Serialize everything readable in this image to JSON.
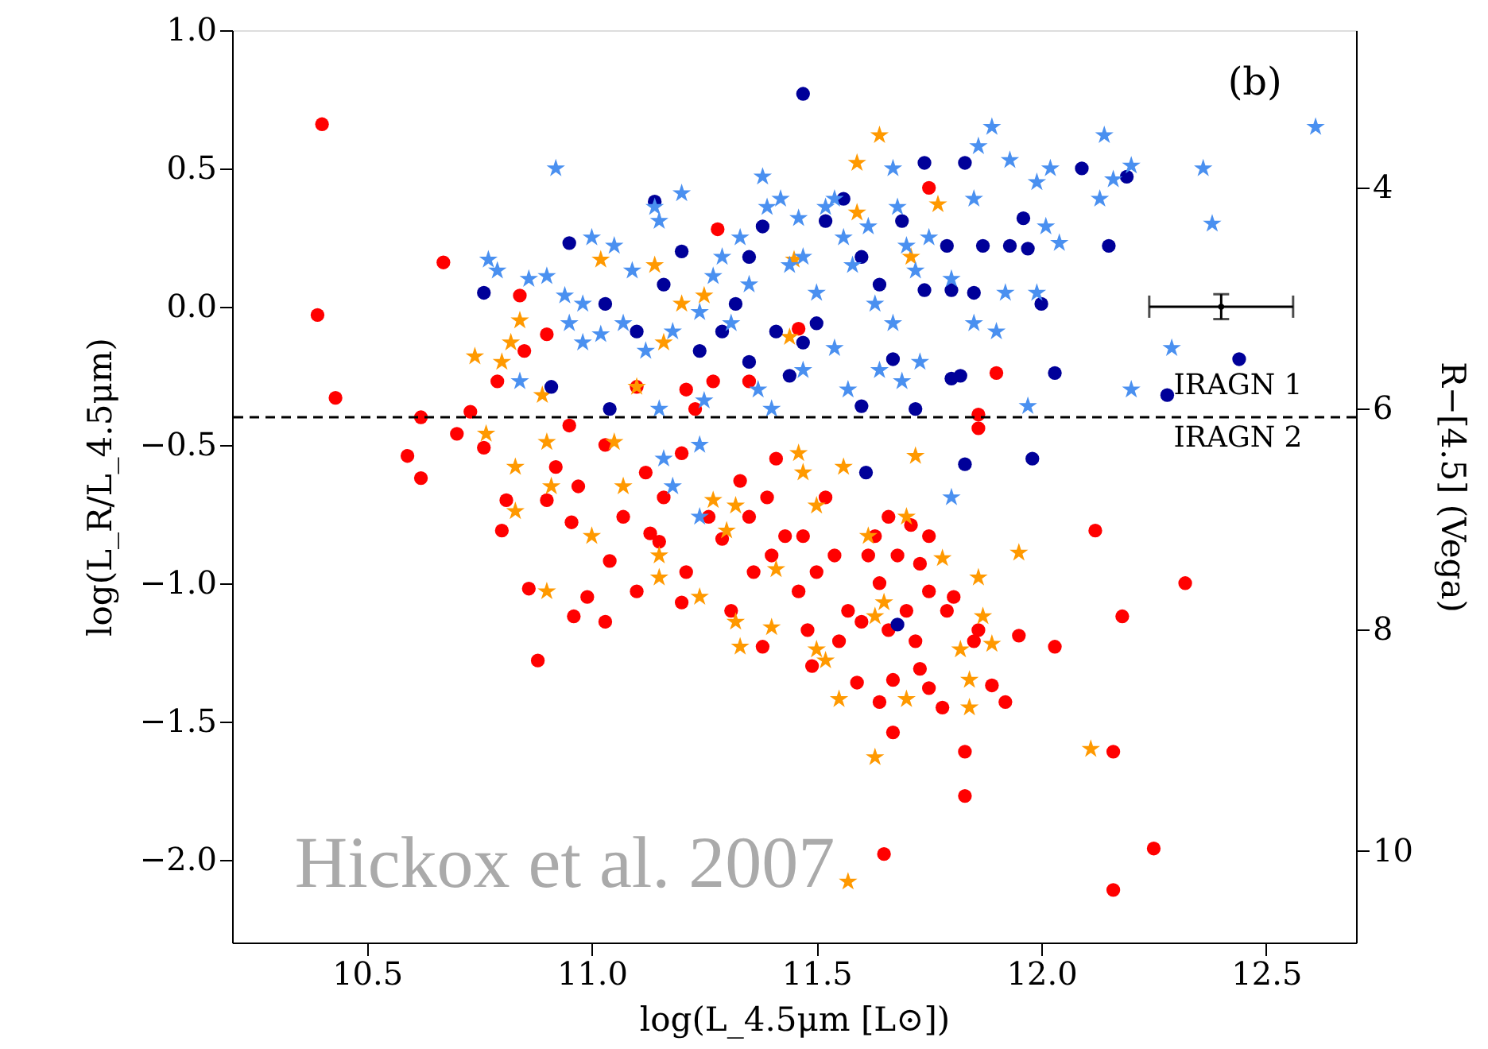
{
  "chart_data": {
    "type": "scatter",
    "xlabel": "log(L_4.5μm [L⊙])",
    "ylabel": "log(L_R/L_4.5μm)",
    "y2label": "R−[4.5] (Vega)",
    "xlim": [
      10.2,
      12.7
    ],
    "xticks": [
      10.5,
      {
        "value": 11,
        "label": "11.0"
      },
      11.5,
      {
        "value": 12,
        "label": "12.0"
      },
      12.5
    ],
    "ylim": [
      -2.3,
      1.0
    ],
    "yticks": [
      {
        "value": 1,
        "label": "1.0"
      },
      0.5,
      {
        "value": 0,
        "label": "0.0"
      },
      {
        "value": -0.5,
        "label": "−0.5"
      },
      {
        "value": -1,
        "label": "−1.0"
      },
      {
        "value": -1.5,
        "label": "−1.5"
      },
      {
        "value": -2,
        "label": "−2.0"
      }
    ],
    "y2lim": [
      10.83,
      2.58
    ],
    "y2ticks": [
      4,
      6,
      8,
      10
    ],
    "grid": false,
    "ref_lines": [
      {
        "axis": "y",
        "value": -0.4,
        "line_style": "dashed",
        "color": "#000000"
      }
    ],
    "annotations": [
      "(b)",
      "IRAGN 1",
      "IRAGN 2",
      "Hickox et al. 2007"
    ],
    "series": [
      {
        "marker": "circle",
        "color": "#ff0000",
        "x": [
          10.4,
          10.39,
          10.43,
          10.67,
          10.62,
          10.59,
          10.62,
          10.7,
          10.73,
          10.84,
          10.81,
          10.8,
          10.86,
          10.88,
          10.955,
          10.96,
          11.03,
          10.99,
          10.92,
          10.95,
          11.03,
          11.1,
          11.12,
          11.04,
          11.1,
          11.15,
          11.16,
          11.2,
          11.23,
          11.27,
          11.26,
          11.29,
          11.33,
          11.31,
          11.36,
          11.38,
          11.41,
          11.39,
          11.43,
          11.46,
          11.48,
          11.49,
          11.52,
          11.54,
          11.57,
          11.59,
          11.615,
          11.64,
          11.66,
          11.67,
          11.65,
          11.68,
          11.7,
          11.72,
          11.75,
          11.78,
          11.83,
          11.83,
          11.75,
          11.805,
          11.86,
          11.89,
          11.92,
          11.95,
          12.03,
          12.12,
          12.18,
          12.16,
          12.16,
          12.25,
          12.32,
          11.9,
          11.86,
          11.86,
          11.75,
          11.28,
          11.46,
          11.35,
          11.21,
          10.9,
          10.85,
          10.79,
          10.76,
          10.9,
          10.97,
          11.07,
          11.13,
          11.21,
          11.2,
          11.35,
          11.4,
          11.47,
          11.5,
          11.55,
          11.63,
          11.66,
          11.71,
          11.73,
          11.75,
          11.79,
          11.73,
          11.85,
          11.67,
          11.64,
          11.6
        ],
        "values": [
          0.66,
          -0.03,
          -0.33,
          0.16,
          -0.4,
          -0.54,
          -0.62,
          -0.46,
          -0.38,
          0.04,
          -0.7,
          -0.81,
          -1.02,
          -1.28,
          -0.78,
          -1.12,
          -1.14,
          -1.05,
          -0.58,
          -0.43,
          -0.5,
          -0.29,
          -0.6,
          -0.92,
          -1.03,
          -0.85,
          -0.69,
          -0.53,
          -0.37,
          -0.27,
          -0.76,
          -0.84,
          -0.63,
          -1.1,
          -0.96,
          -1.23,
          -0.55,
          -0.69,
          -0.83,
          -1.03,
          -1.17,
          -1.3,
          -0.69,
          -0.9,
          -1.1,
          -1.36,
          -0.9,
          -1.0,
          -1.17,
          -1.54,
          -1.98,
          -0.9,
          -1.1,
          -1.21,
          -1.38,
          -1.45,
          -1.61,
          -1.77,
          -1.03,
          -1.05,
          -1.17,
          -1.37,
          -1.43,
          -1.19,
          -1.23,
          -0.81,
          -1.12,
          -1.61,
          -2.11,
          -1.96,
          -1.0,
          -0.24,
          -0.39,
          -0.44,
          0.43,
          0.28,
          -0.08,
          -0.27,
          -0.3,
          -0.1,
          -0.16,
          -0.27,
          -0.51,
          -0.7,
          -0.65,
          -0.76,
          -0.82,
          -0.96,
          -1.07,
          -0.76,
          -0.9,
          -0.83,
          -0.96,
          -1.21,
          -0.83,
          -0.76,
          -0.79,
          -0.93,
          -0.83,
          -1.1,
          -1.31,
          -1.21,
          -1.35,
          -1.43,
          -1.14
        ]
      },
      {
        "marker": "star",
        "color": "#ff9900",
        "x": [
          10.74,
          10.8,
          10.84,
          10.82,
          10.765,
          10.89,
          10.83,
          10.83,
          10.9,
          10.91,
          10.9,
          11.0,
          11.02,
          11.05,
          11.07,
          11.1,
          11.14,
          11.16,
          11.15,
          11.15,
          11.24,
          11.2,
          11.25,
          11.27,
          11.32,
          11.3,
          11.32,
          11.33,
          11.4,
          11.41,
          11.45,
          11.44,
          11.46,
          11.47,
          11.5,
          11.52,
          11.5,
          11.56,
          11.55,
          11.59,
          11.64,
          11.59,
          11.615,
          11.63,
          11.65,
          11.63,
          11.57,
          11.7,
          11.7,
          11.72,
          11.71,
          11.77,
          11.78,
          11.82,
          11.84,
          11.84,
          11.86,
          11.87,
          11.89,
          11.95,
          12.11
        ],
        "values": [
          -0.18,
          -0.2,
          -0.05,
          -0.13,
          -0.46,
          -0.32,
          -0.74,
          -0.58,
          -0.49,
          -0.65,
          -1.03,
          -0.83,
          0.17,
          -0.49,
          -0.65,
          -0.29,
          0.15,
          -0.13,
          -0.9,
          -0.98,
          -1.05,
          0.01,
          0.04,
          -0.7,
          -0.72,
          -0.81,
          -1.14,
          -1.23,
          -1.16,
          -0.95,
          0.17,
          -0.11,
          -0.53,
          -0.6,
          -1.24,
          -1.28,
          -0.72,
          -0.58,
          -1.42,
          0.52,
          0.62,
          0.34,
          -0.83,
          -1.12,
          -1.07,
          -1.63,
          -2.08,
          -0.76,
          -1.42,
          -0.54,
          0.18,
          0.37,
          -0.91,
          -1.24,
          -1.35,
          -1.45,
          -0.98,
          -1.12,
          -1.22,
          -0.89,
          -1.6
        ]
      },
      {
        "marker": "circle",
        "color": "#000099",
        "x": [
          11.47,
          10.95,
          10.76,
          10.91,
          11.04,
          11.03,
          11.1,
          11.14,
          11.16,
          11.24,
          11.29,
          11.32,
          11.35,
          11.38,
          11.41,
          11.35,
          11.44,
          11.47,
          11.52,
          11.56,
          11.6,
          11.64,
          11.69,
          11.74,
          11.74,
          11.8,
          11.79,
          11.83,
          11.85,
          11.87,
          11.93,
          11.96,
          11.97,
          12.0,
          12.09,
          12.19,
          12.15,
          12.03,
          11.98,
          11.83,
          11.82,
          11.8,
          11.72,
          11.6,
          11.61,
          11.67,
          11.68,
          12.44,
          12.28,
          11.2,
          11.5
        ],
        "values": [
          0.77,
          0.23,
          0.05,
          -0.29,
          -0.37,
          0.01,
          -0.09,
          0.38,
          0.08,
          -0.16,
          -0.09,
          0.01,
          0.18,
          0.29,
          -0.09,
          -0.2,
          -0.25,
          -0.13,
          0.31,
          0.39,
          0.18,
          0.08,
          0.31,
          0.52,
          0.06,
          0.06,
          0.22,
          0.52,
          0.05,
          0.22,
          0.22,
          0.32,
          0.21,
          0.01,
          0.5,
          0.47,
          0.22,
          -0.24,
          -0.55,
          -0.57,
          -0.25,
          -0.26,
          -0.37,
          -0.36,
          -0.6,
          -0.19,
          -1.15,
          -0.19,
          -0.32,
          0.2,
          -0.06
        ]
      },
      {
        "marker": "star",
        "color": "#4a90f0",
        "x": [
          10.92,
          10.77,
          10.79,
          10.86,
          10.9,
          10.94,
          10.95,
          10.98,
          11.0,
          11.05,
          11.09,
          10.98,
          11.02,
          10.84,
          11.14,
          11.15,
          11.2,
          11.12,
          11.15,
          11.16,
          11.18,
          11.24,
          11.24,
          11.25,
          11.27,
          11.29,
          11.31,
          11.33,
          11.38,
          11.39,
          11.42,
          11.46,
          11.44,
          11.47,
          11.5,
          11.52,
          11.54,
          11.56,
          11.58,
          11.615,
          11.67,
          11.68,
          11.7,
          11.72,
          11.75,
          11.8,
          11.85,
          11.86,
          11.89,
          11.93,
          11.99,
          12.02,
          12.01,
          12.04,
          11.92,
          11.99,
          11.9,
          11.85,
          11.97,
          12.13,
          12.16,
          12.14,
          12.2,
          12.36,
          12.38,
          12.61,
          12.29,
          12.2,
          11.8,
          11.73,
          11.69,
          11.64,
          11.57,
          11.54,
          11.37,
          11.4,
          11.47,
          11.24,
          11.18,
          11.07,
          11.35,
          11.63,
          11.67
        ],
        "values": [
          0.5,
          0.17,
          0.13,
          0.1,
          0.11,
          0.04,
          -0.06,
          0.01,
          0.25,
          0.22,
          0.13,
          -0.13,
          -0.1,
          -0.27,
          0.36,
          0.31,
          0.41,
          -0.16,
          -0.37,
          -0.55,
          -0.65,
          -0.76,
          -0.5,
          -0.34,
          0.11,
          0.18,
          -0.06,
          0.25,
          0.47,
          0.36,
          0.39,
          0.32,
          0.15,
          0.18,
          0.05,
          0.36,
          0.39,
          0.25,
          0.15,
          0.29,
          0.5,
          0.36,
          0.22,
          0.13,
          0.25,
          0.1,
          0.39,
          0.58,
          0.65,
          0.53,
          0.45,
          0.5,
          0.29,
          0.23,
          0.05,
          0.05,
          -0.09,
          -0.06,
          -0.36,
          0.39,
          0.46,
          0.62,
          0.51,
          0.5,
          0.3,
          0.65,
          -0.15,
          -0.3,
          -0.69,
          -0.2,
          -0.27,
          -0.23,
          -0.3,
          -0.15,
          -0.3,
          -0.37,
          -0.23,
          -0.02,
          -0.09,
          -0.06,
          0.08,
          0.01,
          -0.06
        ]
      },
      {
        "marker": "none",
        "color": "#000000",
        "x": [
          12.4
        ],
        "values": [
          0.0
        ],
        "errors": [
          0.045
        ],
        "xerrors": [
          0.16
        ]
      }
    ]
  }
}
